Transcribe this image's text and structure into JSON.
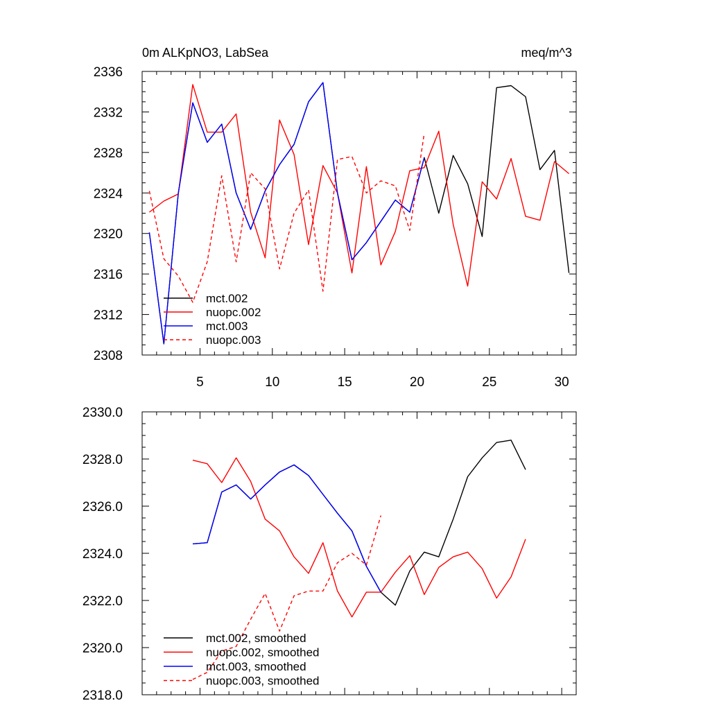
{
  "chart_data": [
    {
      "type": "line",
      "title_left": "0m ALKpNO3, LabSea",
      "title_right": "meq/m^3",
      "xlabel": "",
      "ylabel": "",
      "xlim": [
        1,
        31
      ],
      "ylim": [
        2308,
        2336
      ],
      "xticks": [
        5,
        10,
        15,
        20,
        25,
        30
      ],
      "xtick_labels": [
        "5",
        "10",
        "15",
        "20",
        "25",
        "30"
      ],
      "yticks": [
        2308,
        2312,
        2316,
        2320,
        2324,
        2328,
        2332,
        2336
      ],
      "ytick_labels": [
        "2308",
        "2312",
        "2316",
        "2320",
        "2324",
        "2328",
        "2332",
        "2336"
      ],
      "grid": false,
      "legend_position": "bottom-left",
      "series": [
        {
          "name": "mct.002",
          "color": "#000000",
          "dash": "solid",
          "x": [
            1.5,
            2.5,
            3.5,
            4.5,
            5.5,
            6.5,
            7.5,
            8.5,
            9.5,
            10.5,
            11.5,
            12.5,
            13.5,
            14.5,
            15.5,
            16.5,
            17.5,
            18.5,
            19.5,
            20.5,
            21.5,
            22.5,
            23.5,
            24.5,
            25.5,
            26.5,
            27.5,
            28.5,
            29.5,
            30.5
          ],
          "values": [
            2320.1,
            2309.1,
            2324.0,
            2332.9,
            2329.0,
            2330.8,
            2324.0,
            2320.4,
            2324.2,
            2326.8,
            2328.8,
            2333.0,
            2334.9,
            2324.0,
            2317.4,
            2319.1,
            2321.2,
            2323.3,
            2322.1,
            2327.5,
            2322.0,
            2327.7,
            2324.9,
            2319.7,
            2334.4,
            2334.6,
            2333.5,
            2326.3,
            2328.2,
            2316.1
          ]
        },
        {
          "name": "nuopc.002",
          "color": "#ff0000",
          "dash": "solid",
          "x": [
            1.5,
            2.5,
            3.5,
            4.5,
            5.5,
            6.5,
            7.5,
            8.5,
            9.5,
            10.5,
            11.5,
            12.5,
            13.5,
            14.5,
            15.5,
            16.5,
            17.5,
            18.5,
            19.5,
            20.5,
            21.5,
            22.5,
            23.5,
            24.5,
            25.5,
            26.5,
            27.5,
            28.5,
            29.5,
            30.5
          ],
          "values": [
            2322.1,
            2323.2,
            2323.9,
            2334.7,
            2330.0,
            2330.0,
            2331.8,
            2322.1,
            2317.6,
            2331.2,
            2327.8,
            2318.9,
            2326.7,
            2324.0,
            2316.1,
            2326.6,
            2316.9,
            2320.2,
            2326.2,
            2326.5,
            2330.1,
            2320.9,
            2314.8,
            2325.1,
            2323.4,
            2327.4,
            2321.7,
            2321.3,
            2327.1,
            2325.9
          ]
        },
        {
          "name": "mct.003",
          "color": "#0000ff",
          "dash": "solid",
          "x": [
            1.5,
            2.5,
            3.5,
            4.5,
            5.5,
            6.5,
            7.5,
            8.5,
            9.5,
            10.5,
            11.5,
            12.5,
            13.5,
            14.5,
            15.5,
            16.5,
            17.5,
            18.5,
            19.5,
            20.5
          ],
          "values": [
            2320.1,
            2309.1,
            2324.0,
            2332.9,
            2329.0,
            2330.8,
            2324.0,
            2320.4,
            2324.2,
            2326.8,
            2328.8,
            2333.0,
            2334.9,
            2324.0,
            2317.4,
            2319.1,
            2321.2,
            2323.3,
            2322.1,
            2327.5
          ]
        },
        {
          "name": "nuopc.003",
          "color": "#ff0000",
          "dash": "dashed",
          "x": [
            1.5,
            2.5,
            3.5,
            4.5,
            5.5,
            6.5,
            7.5,
            8.5,
            9.5,
            10.5,
            11.5,
            12.5,
            13.5,
            14.5,
            15.5,
            16.5,
            17.5,
            18.5,
            19.5,
            20.5
          ],
          "values": [
            2324.2,
            2317.5,
            2315.8,
            2313.2,
            2317.2,
            2325.7,
            2317.2,
            2326.0,
            2324.4,
            2316.5,
            2322.0,
            2324.3,
            2314.3,
            2327.3,
            2327.6,
            2324.0,
            2325.2,
            2324.7,
            2320.3,
            2329.9
          ]
        }
      ]
    },
    {
      "type": "line",
      "title_left": "",
      "title_right": "",
      "xlabel": "",
      "ylabel": "",
      "xlim": [
        1,
        31
      ],
      "ylim": [
        2318,
        2330
      ],
      "xticks": [
        5,
        10,
        15,
        20,
        25,
        30
      ],
      "xtick_labels": [],
      "yticks": [
        2318,
        2320,
        2322,
        2324,
        2326,
        2328,
        2330
      ],
      "ytick_labels": [
        "2318.0",
        "2320.0",
        "2322.0",
        "2324.0",
        "2326.0",
        "2328.0",
        "2330.0"
      ],
      "grid": false,
      "legend_position": "bottom-left",
      "series": [
        {
          "name": "mct.002, smoothed",
          "color": "#000000",
          "dash": "solid",
          "x": [
            4.5,
            5.5,
            6.5,
            7.5,
            8.5,
            9.5,
            10.5,
            11.5,
            12.5,
            13.5,
            14.5,
            15.5,
            16.5,
            17.5,
            18.5,
            19.5,
            20.5,
            21.5,
            22.5,
            23.5,
            24.5,
            25.5,
            26.5,
            27.5
          ],
          "values": [
            2324.4,
            2324.45,
            2326.6,
            2326.9,
            2326.3,
            2326.9,
            2327.45,
            2327.75,
            2327.3,
            2326.5,
            2325.7,
            2324.95,
            2323.45,
            2322.35,
            2321.8,
            2323.25,
            2324.05,
            2323.85,
            2325.45,
            2327.25,
            2328.05,
            2328.7,
            2328.8,
            2327.55
          ]
        },
        {
          "name": "nuopc.002, smoothed",
          "color": "#ff0000",
          "dash": "solid",
          "x": [
            4.5,
            5.5,
            6.5,
            7.5,
            8.5,
            9.5,
            10.5,
            11.5,
            12.5,
            13.5,
            14.5,
            15.5,
            16.5,
            17.5,
            18.5,
            19.5,
            20.5,
            21.5,
            22.5,
            23.5,
            24.5,
            25.5,
            26.5,
            27.5
          ],
          "values": [
            2327.95,
            2327.8,
            2327.0,
            2328.05,
            2327.05,
            2325.45,
            2324.95,
            2323.85,
            2323.15,
            2324.45,
            2322.4,
            2321.3,
            2322.35,
            2322.35,
            2323.2,
            2323.9,
            2322.25,
            2323.4,
            2323.85,
            2324.05,
            2323.35,
            2322.1,
            2323.0,
            2324.6
          ]
        },
        {
          "name": "mct.003, smoothed",
          "color": "#0000ff",
          "dash": "solid",
          "x": [
            4.5,
            5.5,
            6.5,
            7.5,
            8.5,
            9.5,
            10.5,
            11.5,
            12.5,
            13.5,
            14.5,
            15.5,
            16.5,
            17.5
          ],
          "values": [
            2324.4,
            2324.45,
            2326.6,
            2326.9,
            2326.3,
            2326.9,
            2327.45,
            2327.75,
            2327.3,
            2326.5,
            2325.7,
            2324.95,
            2323.45,
            2322.35
          ]
        },
        {
          "name": "nuopc.003, smoothed",
          "color": "#ff0000",
          "dash": "dashed",
          "x": [
            4.5,
            5.5,
            6.5,
            7.5,
            8.5,
            9.5,
            10.5,
            11.5,
            12.5,
            13.5,
            14.5,
            15.5,
            16.5,
            17.5
          ],
          "values": [
            2318.65,
            2318.95,
            2319.85,
            2320.05,
            2321.2,
            2322.3,
            2320.7,
            2322.2,
            2322.4,
            2322.4,
            2323.6,
            2324.0,
            2323.5,
            2325.6
          ]
        }
      ]
    }
  ]
}
